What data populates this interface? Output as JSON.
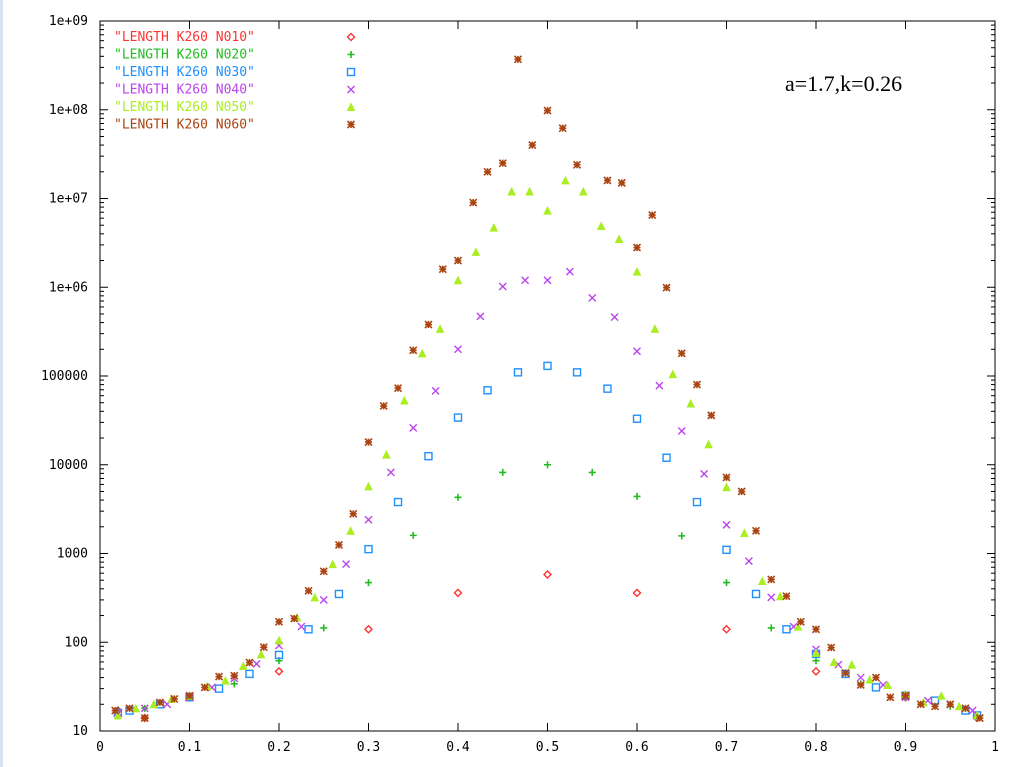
{
  "chart_data": {
    "type": "scatter",
    "title": "",
    "xlabel": "",
    "ylabel": "",
    "xlim": [
      0,
      1
    ],
    "ylim": [
      10,
      1000000000
    ],
    "y_scale": "log",
    "grid": false,
    "legend_position": "top-left",
    "annotation": "a=1.7,k=0.26",
    "x_ticks": [
      "0",
      "0.1",
      "0.2",
      "0.3",
      "0.4",
      "0.5",
      "0.6",
      "0.7",
      "0.8",
      "0.9",
      "1"
    ],
    "y_ticks": [
      "10",
      "100",
      "1000",
      "10000",
      "100000",
      "1e+06",
      "1e+07",
      "1e+08",
      "1e+09"
    ],
    "series": [
      {
        "name": "\"LENGTH K260 N010\"",
        "marker": "diamond",
        "color": "#ff3333",
        "points": [
          [
            0.02,
            17
          ],
          [
            0.05,
            14
          ],
          [
            0.1,
            24
          ],
          [
            0.2,
            47
          ],
          [
            0.3,
            140
          ],
          [
            0.4,
            360
          ],
          [
            0.5,
            580
          ],
          [
            0.6,
            360
          ],
          [
            0.7,
            140
          ],
          [
            0.8,
            47
          ],
          [
            0.9,
            24
          ],
          [
            0.98,
            14
          ]
        ]
      },
      {
        "name": "\"LENGTH K260 N020\"",
        "marker": "plus",
        "color": "#22bb22",
        "points": [
          [
            0.02,
            17
          ],
          [
            0.05,
            18
          ],
          [
            0.1,
            24
          ],
          [
            0.15,
            34
          ],
          [
            0.2,
            62
          ],
          [
            0.25,
            145
          ],
          [
            0.3,
            470
          ],
          [
            0.35,
            1600
          ],
          [
            0.4,
            4300
          ],
          [
            0.45,
            8200
          ],
          [
            0.5,
            10000
          ],
          [
            0.55,
            8200
          ],
          [
            0.6,
            4400
          ],
          [
            0.65,
            1580
          ],
          [
            0.7,
            470
          ],
          [
            0.75,
            145
          ],
          [
            0.8,
            62
          ],
          [
            0.85,
            34
          ],
          [
            0.9,
            24
          ],
          [
            0.95,
            19
          ],
          [
            0.98,
            15
          ]
        ]
      },
      {
        "name": "\"LENGTH K260 N030\"",
        "marker": "square",
        "color": "#1e90ff",
        "points": [
          [
            0.02,
            16
          ],
          [
            0.033,
            17
          ],
          [
            0.067,
            20
          ],
          [
            0.1,
            24
          ],
          [
            0.133,
            30
          ],
          [
            0.167,
            44
          ],
          [
            0.2,
            72
          ],
          [
            0.233,
            140
          ],
          [
            0.267,
            350
          ],
          [
            0.3,
            1120
          ],
          [
            0.333,
            3800
          ],
          [
            0.367,
            12500
          ],
          [
            0.4,
            34000
          ],
          [
            0.433,
            69000
          ],
          [
            0.467,
            110000
          ],
          [
            0.5,
            130000
          ],
          [
            0.533,
            110000
          ],
          [
            0.567,
            72000
          ],
          [
            0.6,
            33000
          ],
          [
            0.633,
            12000
          ],
          [
            0.667,
            3800
          ],
          [
            0.7,
            1100
          ],
          [
            0.733,
            350
          ],
          [
            0.767,
            140
          ],
          [
            0.8,
            74
          ],
          [
            0.833,
            44
          ],
          [
            0.867,
            31
          ],
          [
            0.9,
            25
          ],
          [
            0.933,
            22
          ],
          [
            0.967,
            17
          ],
          [
            0.98,
            15
          ]
        ]
      },
      {
        "name": "\"LENGTH K260 N040\"",
        "marker": "cross",
        "color": "#bb44ee",
        "points": [
          [
            0.02,
            16
          ],
          [
            0.05,
            18
          ],
          [
            0.075,
            20
          ],
          [
            0.1,
            24
          ],
          [
            0.125,
            31
          ],
          [
            0.15,
            39
          ],
          [
            0.175,
            57
          ],
          [
            0.2,
            92
          ],
          [
            0.225,
            150
          ],
          [
            0.25,
            300
          ],
          [
            0.275,
            760
          ],
          [
            0.3,
            2400
          ],
          [
            0.325,
            8200
          ],
          [
            0.35,
            26000
          ],
          [
            0.375,
            68000
          ],
          [
            0.4,
            200000
          ],
          [
            0.425,
            470000
          ],
          [
            0.45,
            1020000
          ],
          [
            0.475,
            1200000
          ],
          [
            0.5,
            1200000
          ],
          [
            0.525,
            1500000
          ],
          [
            0.55,
            760000
          ],
          [
            0.575,
            460000
          ],
          [
            0.6,
            190000
          ],
          [
            0.625,
            78000
          ],
          [
            0.65,
            24000
          ],
          [
            0.675,
            7900
          ],
          [
            0.7,
            2100
          ],
          [
            0.725,
            820
          ],
          [
            0.75,
            320
          ],
          [
            0.775,
            150
          ],
          [
            0.8,
            83
          ],
          [
            0.825,
            56
          ],
          [
            0.85,
            40
          ],
          [
            0.875,
            33
          ],
          [
            0.9,
            24
          ],
          [
            0.925,
            22
          ],
          [
            0.95,
            20
          ],
          [
            0.975,
            17
          ]
        ]
      },
      {
        "name": "\"LENGTH K260 N050\"",
        "marker": "triangle",
        "color": "#aaee22",
        "points": [
          [
            0.02,
            15
          ],
          [
            0.04,
            18
          ],
          [
            0.06,
            20
          ],
          [
            0.08,
            23
          ],
          [
            0.1,
            25
          ],
          [
            0.12,
            32
          ],
          [
            0.14,
            37
          ],
          [
            0.16,
            54
          ],
          [
            0.18,
            73
          ],
          [
            0.2,
            105
          ],
          [
            0.22,
            190
          ],
          [
            0.24,
            320
          ],
          [
            0.26,
            760
          ],
          [
            0.28,
            1800
          ],
          [
            0.3,
            5700
          ],
          [
            0.32,
            13000
          ],
          [
            0.34,
            53000
          ],
          [
            0.36,
            180000
          ],
          [
            0.38,
            340000
          ],
          [
            0.4,
            1200000
          ],
          [
            0.42,
            2500000
          ],
          [
            0.44,
            4700000
          ],
          [
            0.46,
            12000000
          ],
          [
            0.48,
            12000000
          ],
          [
            0.5,
            7300000
          ],
          [
            0.52,
            16000000
          ],
          [
            0.54,
            12000000
          ],
          [
            0.56,
            4900000
          ],
          [
            0.58,
            3500000
          ],
          [
            0.6,
            1500000
          ],
          [
            0.62,
            340000
          ],
          [
            0.64,
            105000
          ],
          [
            0.66,
            49000
          ],
          [
            0.68,
            17000
          ],
          [
            0.7,
            5600
          ],
          [
            0.72,
            1700
          ],
          [
            0.74,
            490
          ],
          [
            0.76,
            330
          ],
          [
            0.78,
            150
          ],
          [
            0.8,
            76
          ],
          [
            0.82,
            60
          ],
          [
            0.84,
            56
          ],
          [
            0.86,
            38
          ],
          [
            0.88,
            33
          ],
          [
            0.9,
            26
          ],
          [
            0.92,
            21
          ],
          [
            0.94,
            25
          ],
          [
            0.96,
            19
          ],
          [
            0.98,
            15
          ]
        ]
      },
      {
        "name": "\"LENGTH K260 N060\"",
        "marker": "star",
        "color": "#aa4411",
        "points": [
          [
            0.017,
            17
          ],
          [
            0.033,
            18
          ],
          [
            0.05,
            14
          ],
          [
            0.067,
            21
          ],
          [
            0.083,
            23
          ],
          [
            0.1,
            25
          ],
          [
            0.117,
            31
          ],
          [
            0.133,
            41
          ],
          [
            0.15,
            42
          ],
          [
            0.167,
            59
          ],
          [
            0.183,
            88
          ],
          [
            0.2,
            170
          ],
          [
            0.217,
            185
          ],
          [
            0.233,
            380
          ],
          [
            0.25,
            630
          ],
          [
            0.267,
            1250
          ],
          [
            0.283,
            2800
          ],
          [
            0.3,
            18000
          ],
          [
            0.317,
            46000
          ],
          [
            0.333,
            73000
          ],
          [
            0.35,
            195000
          ],
          [
            0.367,
            380000
          ],
          [
            0.383,
            1600000
          ],
          [
            0.4,
            2000000
          ],
          [
            0.417,
            9000000
          ],
          [
            0.433,
            20000000
          ],
          [
            0.45,
            25000000
          ],
          [
            0.467,
            370000000
          ],
          [
            0.483,
            40000000
          ],
          [
            0.5,
            98000000
          ],
          [
            0.517,
            62000000
          ],
          [
            0.533,
            24000000
          ],
          [
            0.567,
            16000000
          ],
          [
            0.583,
            15000000
          ],
          [
            0.6,
            2800000
          ],
          [
            0.617,
            6500000
          ],
          [
            0.633,
            990000
          ],
          [
            0.65,
            180000
          ],
          [
            0.667,
            80000
          ],
          [
            0.683,
            36000
          ],
          [
            0.7,
            7200
          ],
          [
            0.717,
            5000
          ],
          [
            0.733,
            1800
          ],
          [
            0.75,
            510
          ],
          [
            0.767,
            330
          ],
          [
            0.783,
            170
          ],
          [
            0.8,
            140
          ],
          [
            0.817,
            87
          ],
          [
            0.833,
            45
          ],
          [
            0.85,
            33
          ],
          [
            0.867,
            40
          ],
          [
            0.883,
            24
          ],
          [
            0.9,
            25
          ],
          [
            0.917,
            20
          ],
          [
            0.933,
            19
          ],
          [
            0.95,
            20
          ],
          [
            0.967,
            18
          ],
          [
            0.983,
            14
          ]
        ]
      }
    ]
  }
}
